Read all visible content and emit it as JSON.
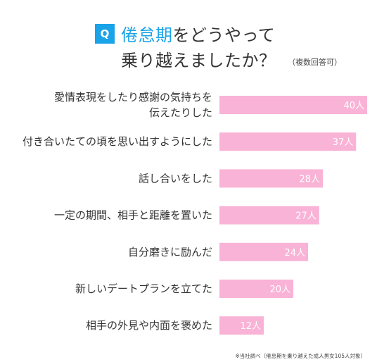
{
  "header": {
    "q_badge": "Q",
    "title_accent": "倦怠期",
    "title_line1_rest": "をどうやって",
    "title_line2": "乗り越えましたか？",
    "subtitle": "（複数回答可）"
  },
  "footnote": "※当社調べ（倦怠期を乗り越えた成人男女105人対象）",
  "colors": {
    "bar": "#f9b3d6",
    "accent": "#1aa3e8"
  },
  "chart_data": {
    "type": "bar",
    "orientation": "horizontal",
    "unit": "人",
    "xlim": [
      0,
      40
    ],
    "categories": [
      [
        "愛情表現をしたり感謝の気持ちを",
        "伝えたりした"
      ],
      [
        "付き合いたての頃を思い出すようにした"
      ],
      [
        "話し合いをした"
      ],
      [
        "一定の期間、相手と距離を置いた"
      ],
      [
        "自分磨きに励んだ"
      ],
      [
        "新しいデートプランを立てた"
      ],
      [
        "相手の外見や内面を褒めた"
      ]
    ],
    "values": [
      40,
      37,
      28,
      27,
      24,
      20,
      12
    ],
    "value_labels": [
      "40人",
      "37人",
      "28人",
      "27人",
      "24人",
      "20人",
      "12人"
    ]
  }
}
